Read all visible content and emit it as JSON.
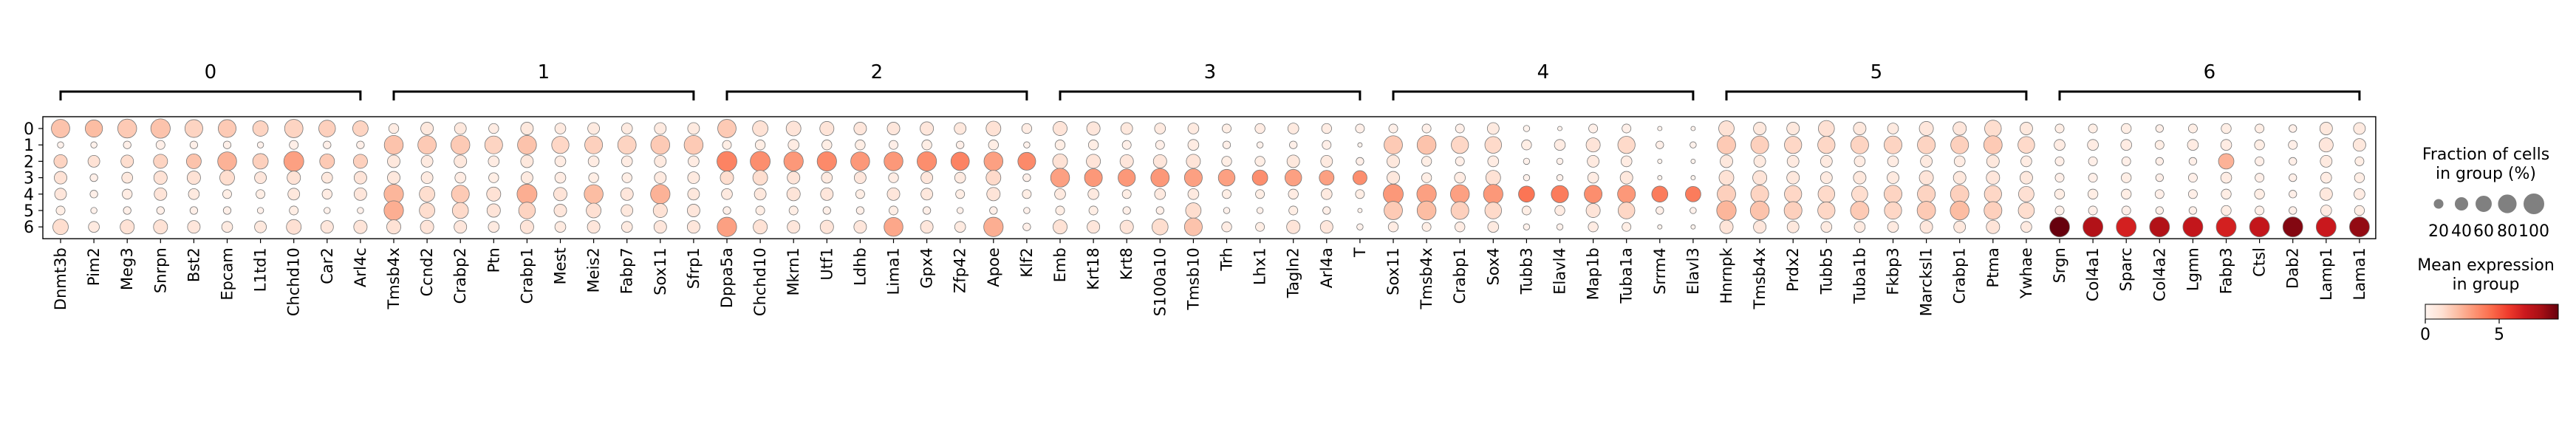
{
  "chart_data": {
    "type": "dotplot",
    "title": "",
    "xlabel": "",
    "ylabel": "",
    "clusters": [
      "0",
      "1",
      "2",
      "3",
      "4",
      "5",
      "6"
    ],
    "groups": [
      {
        "label": "0",
        "genes": [
          "Dnmt3b",
          "Pim2",
          "Meg3",
          "Snrpn",
          "Bst2",
          "Epcam",
          "L1td1",
          "Chchd10",
          "Car2",
          "Arl4c"
        ]
      },
      {
        "label": "1",
        "genes": [
          "Tmsb4x",
          "Ccnd2",
          "Crabp2",
          "Ptn",
          "Crabp1",
          "Mest",
          "Meis2",
          "Fabp7",
          "Sox11",
          "Sfrp1"
        ]
      },
      {
        "label": "2",
        "genes": [
          "Dppa5a",
          "Chchd10",
          "Mkrn1",
          "Utf1",
          "Ldhb",
          "Lima1",
          "Gpx4",
          "Zfp42",
          "Apoe",
          "Klf2"
        ]
      },
      {
        "label": "3",
        "genes": [
          "Emb",
          "Krt18",
          "Krt8",
          "S100a10",
          "Tmsb10",
          "Trh",
          "Lhx1",
          "Tagln2",
          "Arl4a",
          "T"
        ]
      },
      {
        "label": "4",
        "genes": [
          "Sox11",
          "Tmsb4x",
          "Crabp1",
          "Sox4",
          "Tubb3",
          "Elavl4",
          "Map1b",
          "Tuba1a",
          "Srrm4",
          "Elavl3"
        ]
      },
      {
        "label": "5",
        "genes": [
          "Hnrnpk",
          "Tmsb4x",
          "Prdx2",
          "Tubb5",
          "Tuba1b",
          "Fkbp3",
          "Marcksl1",
          "Crabp1",
          "Ptma",
          "Ywhae"
        ]
      },
      {
        "label": "6",
        "genes": [
          "Srgn",
          "Col4a1",
          "Sparc",
          "Col4a2",
          "Lgmn",
          "Fabp3",
          "Ctsl",
          "Dab2",
          "Lamp1",
          "Lama1"
        ]
      }
    ],
    "size_matrix": [
      [
        85,
        75,
        90,
        95,
        80,
        80,
        60,
        85,
        70,
        60,
        25,
        40,
        35,
        25,
        40,
        30,
        35,
        30,
        35,
        35,
        85,
        60,
        55,
        50,
        40,
        40,
        45,
        35,
        55,
        25,
        50,
        45,
        35,
        30,
        30,
        20,
        25,
        30,
        25,
        20,
        20,
        20,
        20,
        35,
        10,
        5,
        20,
        20,
        5,
        5,
        60,
        40,
        40,
        65,
        40,
        30,
        50,
        45,
        70,
        40,
        20,
        20,
        25,
        15,
        20,
        25,
        20,
        15,
        40,
        35
      ],
      [
        10,
        10,
        15,
        20,
        15,
        15,
        10,
        20,
        15,
        15,
        90,
        85,
        90,
        80,
        90,
        75,
        80,
        85,
        90,
        90,
        20,
        25,
        30,
        25,
        25,
        20,
        25,
        15,
        25,
        10,
        25,
        25,
        20,
        20,
        30,
        15,
        10,
        15,
        20,
        5,
        85,
        90,
        75,
        70,
        25,
        30,
        50,
        75,
        15,
        10,
        85,
        80,
        75,
        75,
        80,
        80,
        80,
        80,
        85,
        70,
        30,
        30,
        30,
        20,
        30,
        30,
        25,
        20,
        50,
        40
      ],
      [
        45,
        35,
        40,
        50,
        55,
        90,
        60,
        100,
        55,
        50,
        40,
        35,
        40,
        30,
        40,
        30,
        30,
        30,
        35,
        30,
        100,
        100,
        95,
        95,
        90,
        90,
        95,
        85,
        90,
        80,
        55,
        50,
        45,
        45,
        50,
        25,
        25,
        40,
        35,
        15,
        40,
        25,
        20,
        30,
        10,
        10,
        35,
        30,
        5,
        5,
        40,
        35,
        35,
        35,
        30,
        30,
        35,
        30,
        40,
        30,
        20,
        20,
        20,
        15,
        15,
        60,
        20,
        15,
        35,
        20
      ],
      [
        40,
        15,
        30,
        45,
        45,
        55,
        35,
        45,
        30,
        40,
        40,
        35,
        30,
        25,
        35,
        30,
        25,
        25,
        35,
        35,
        45,
        55,
        40,
        30,
        35,
        25,
        35,
        30,
        55,
        15,
        90,
        80,
        75,
        85,
        80,
        70,
        60,
        70,
        55,
        50,
        40,
        25,
        30,
        55,
        10,
        10,
        30,
        40,
        5,
        5,
        55,
        50,
        40,
        35,
        40,
        35,
        50,
        40,
        45,
        40,
        20,
        20,
        25,
        15,
        20,
        30,
        20,
        15,
        30,
        25
      ],
      [
        35,
        15,
        25,
        40,
        30,
        20,
        20,
        35,
        25,
        40,
        95,
        60,
        80,
        50,
        100,
        45,
        90,
        40,
        95,
        35,
        30,
        35,
        45,
        40,
        20,
        40,
        35,
        20,
        45,
        20,
        30,
        30,
        20,
        30,
        30,
        20,
        20,
        25,
        30,
        20,
        100,
        95,
        90,
        95,
        65,
        75,
        80,
        80,
        65,
        60,
        85,
        80,
        75,
        70,
        65,
        80,
        80,
        85,
        75,
        60,
        25,
        25,
        25,
        20,
        20,
        25,
        25,
        15,
        40,
        30
      ],
      [
        20,
        10,
        15,
        15,
        15,
        15,
        10,
        20,
        10,
        10,
        95,
        60,
        65,
        45,
        70,
        40,
        55,
        35,
        50,
        40,
        15,
        20,
        20,
        15,
        15,
        20,
        15,
        10,
        15,
        10,
        20,
        20,
        15,
        15,
        60,
        10,
        10,
        20,
        15,
        5,
        85,
        90,
        80,
        70,
        20,
        25,
        50,
        70,
        15,
        10,
        95,
        90,
        80,
        75,
        85,
        75,
        85,
        90,
        80,
        65,
        20,
        20,
        20,
        15,
        15,
        25,
        20,
        15,
        30,
        25
      ],
      [
        60,
        30,
        50,
        50,
        40,
        30,
        35,
        55,
        40,
        45,
        50,
        45,
        40,
        30,
        45,
        30,
        40,
        30,
        40,
        40,
        95,
        50,
        40,
        45,
        40,
        90,
        40,
        30,
        95,
        15,
        50,
        40,
        45,
        65,
        80,
        25,
        20,
        45,
        40,
        10,
        25,
        20,
        25,
        30,
        10,
        10,
        25,
        20,
        5,
        5,
        45,
        40,
        35,
        30,
        30,
        30,
        40,
        35,
        45,
        30,
        100,
        100,
        100,
        100,
        100,
        100,
        100,
        100,
        100,
        100
      ]
    ],
    "expr_matrix": [
      [
        2.0,
        2.2,
        1.8,
        2.0,
        1.5,
        1.8,
        1.5,
        1.5,
        1.6,
        1.5,
        0.5,
        0.7,
        0.7,
        0.5,
        0.7,
        0.6,
        0.6,
        0.6,
        0.6,
        0.6,
        1.8,
        1.0,
        0.9,
        0.9,
        0.8,
        0.8,
        0.8,
        0.7,
        1.0,
        0.5,
        0.9,
        0.8,
        0.7,
        0.6,
        0.6,
        0.4,
        0.5,
        0.6,
        0.5,
        0.3,
        0.3,
        0.3,
        0.3,
        0.6,
        0.1,
        0.1,
        0.3,
        0.3,
        0.1,
        0.1,
        1.0,
        0.7,
        0.7,
        1.1,
        0.7,
        0.6,
        0.8,
        0.8,
        1.2,
        0.7,
        0.4,
        0.4,
        0.4,
        0.3,
        0.4,
        0.4,
        0.4,
        0.3,
        0.7,
        0.6
      ],
      [
        0.2,
        0.2,
        0.3,
        0.3,
        0.3,
        0.3,
        0.2,
        0.3,
        0.3,
        0.3,
        2.0,
        1.8,
        1.8,
        1.5,
        2.0,
        1.4,
        1.6,
        1.5,
        1.8,
        1.8,
        0.4,
        0.4,
        0.5,
        0.4,
        0.4,
        0.3,
        0.4,
        0.3,
        0.4,
        0.2,
        0.4,
        0.4,
        0.3,
        0.3,
        0.5,
        0.3,
        0.2,
        0.3,
        0.3,
        0.1,
        1.8,
        2.0,
        1.4,
        1.3,
        0.4,
        0.5,
        0.9,
        1.3,
        0.3,
        0.2,
        1.8,
        1.6,
        1.4,
        1.4,
        1.5,
        1.5,
        1.5,
        1.6,
        1.8,
        1.3,
        0.5,
        0.5,
        0.5,
        0.4,
        0.5,
        0.5,
        0.4,
        0.3,
        0.8,
        0.7
      ],
      [
        1.5,
        1.0,
        1.2,
        1.5,
        2.0,
        2.5,
        1.6,
        3.0,
        1.8,
        1.6,
        0.7,
        0.6,
        0.7,
        0.5,
        0.7,
        0.5,
        0.5,
        0.5,
        0.6,
        0.5,
        3.8,
        3.5,
        3.2,
        3.6,
        3.2,
        3.2,
        3.5,
        3.8,
        3.0,
        3.6,
        1.0,
        0.9,
        0.8,
        0.8,
        0.9,
        0.4,
        0.4,
        0.7,
        0.6,
        0.3,
        0.7,
        0.4,
        0.3,
        0.5,
        0.2,
        0.2,
        0.6,
        0.5,
        0.1,
        0.1,
        0.7,
        0.6,
        0.6,
        0.6,
        0.5,
        0.5,
        0.6,
        0.5,
        0.7,
        0.5,
        0.3,
        0.3,
        0.3,
        0.3,
        0.3,
        2.5,
        0.3,
        0.3,
        0.6,
        0.4
      ],
      [
        1.0,
        0.3,
        0.7,
        1.0,
        1.0,
        1.2,
        0.8,
        1.0,
        0.7,
        0.9,
        0.7,
        0.6,
        0.5,
        0.4,
        0.6,
        0.5,
        0.4,
        0.4,
        0.6,
        0.6,
        1.2,
        1.2,
        0.9,
        0.6,
        0.8,
        0.5,
        0.8,
        0.6,
        1.3,
        0.3,
        3.0,
        3.2,
        3.2,
        3.2,
        3.0,
        3.0,
        3.5,
        3.0,
        3.0,
        3.5,
        0.7,
        0.4,
        0.5,
        1.0,
        0.2,
        0.2,
        0.5,
        0.7,
        0.1,
        0.1,
        1.0,
        0.9,
        0.7,
        0.6,
        0.7,
        0.6,
        0.9,
        0.7,
        0.8,
        0.7,
        0.3,
        0.3,
        0.4,
        0.3,
        0.3,
        0.5,
        0.3,
        0.3,
        0.5,
        0.4
      ],
      [
        0.8,
        0.3,
        0.5,
        0.9,
        0.6,
        0.4,
        0.4,
        0.7,
        0.5,
        0.8,
        2.4,
        1.2,
        1.8,
        1.0,
        2.6,
        0.9,
        2.2,
        0.8,
        2.5,
        0.7,
        0.6,
        0.7,
        0.9,
        0.8,
        0.4,
        0.8,
        0.7,
        0.4,
        0.9,
        0.4,
        0.6,
        0.6,
        0.4,
        0.6,
        0.6,
        0.4,
        0.4,
        0.5,
        0.6,
        0.4,
        3.2,
        3.0,
        3.0,
        3.2,
        4.2,
        4.0,
        3.5,
        3.2,
        4.0,
        4.0,
        1.6,
        1.5,
        1.4,
        1.3,
        1.2,
        1.5,
        1.5,
        1.6,
        1.4,
        1.1,
        0.4,
        0.4,
        0.4,
        0.3,
        0.3,
        0.4,
        0.4,
        0.3,
        0.7,
        0.5
      ],
      [
        0.4,
        0.2,
        0.3,
        0.3,
        0.3,
        0.3,
        0.2,
        0.4,
        0.2,
        0.2,
        2.6,
        1.2,
        1.3,
        0.9,
        1.5,
        0.8,
        1.1,
        0.7,
        1.0,
        0.8,
        0.3,
        0.4,
        0.4,
        0.3,
        0.3,
        0.4,
        0.3,
        0.2,
        0.3,
        0.2,
        0.4,
        0.4,
        0.3,
        0.3,
        1.2,
        0.2,
        0.2,
        0.4,
        0.3,
        0.1,
        1.8,
        2.2,
        1.6,
        1.3,
        0.4,
        0.5,
        0.9,
        1.4,
        0.3,
        0.2,
        2.4,
        2.0,
        1.6,
        1.4,
        1.8,
        1.4,
        1.8,
        2.2,
        1.6,
        1.2,
        0.3,
        0.3,
        0.3,
        0.3,
        0.3,
        0.4,
        0.3,
        0.3,
        0.5,
        0.4
      ],
      [
        1.2,
        0.6,
        1.0,
        1.0,
        0.8,
        0.6,
        0.7,
        1.1,
        0.8,
        0.9,
        1.0,
        0.9,
        0.8,
        0.6,
        0.9,
        0.6,
        0.8,
        0.6,
        0.8,
        0.8,
        3.0,
        1.0,
        0.8,
        0.9,
        0.8,
        2.8,
        0.8,
        0.6,
        2.6,
        0.3,
        1.0,
        0.8,
        0.9,
        1.2,
        2.0,
        0.5,
        0.4,
        0.9,
        0.8,
        0.2,
        0.5,
        0.4,
        0.5,
        0.6,
        0.2,
        0.2,
        0.5,
        0.4,
        0.1,
        0.1,
        0.9,
        0.8,
        0.7,
        0.6,
        0.6,
        0.6,
        0.8,
        0.7,
        0.9,
        0.6,
        9.0,
        7.5,
        6.5,
        7.5,
        7.0,
        6.5,
        7.0,
        8.5,
        6.8,
        8.2
      ]
    ],
    "legend_size": {
      "title_lines": [
        "Fraction of cells",
        "in group (%)"
      ],
      "values": [
        20,
        40,
        60,
        80,
        100
      ],
      "labels": [
        "20",
        "40",
        "60",
        "80",
        "100"
      ]
    },
    "legend_color": {
      "title_lines": [
        "Mean expression",
        "in group"
      ],
      "range": [
        0,
        9
      ],
      "ticks": [
        0,
        5
      ],
      "tick_labels": [
        "0",
        "5"
      ],
      "colormap": "Reds"
    }
  }
}
